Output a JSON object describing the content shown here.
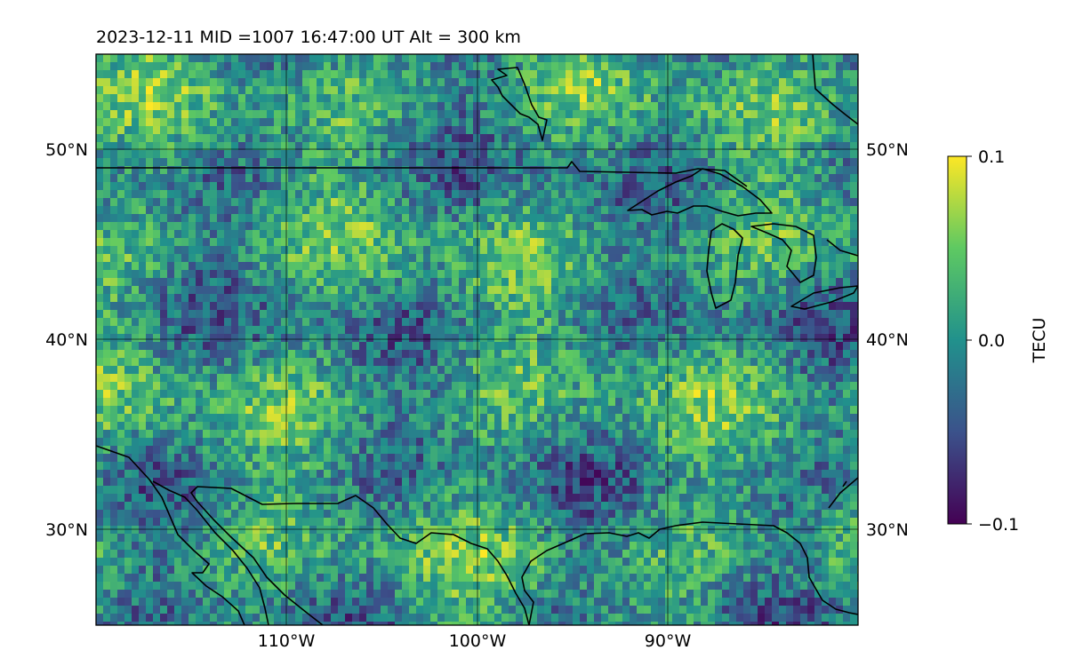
{
  "figure": {
    "title": "2023-12-11  MID =1007    16:47:00  UT  Alt = 300 km"
  },
  "map": {
    "lon_range": [
      -120,
      -80
    ],
    "lat_range": [
      25,
      55
    ],
    "lon_ticks": [
      {
        "value": -110,
        "label": "110°W"
      },
      {
        "value": -100,
        "label": "100°W"
      },
      {
        "value": -90,
        "label": "90°W"
      }
    ],
    "lat_ticks": [
      {
        "value": 50,
        "label": "50°N"
      },
      {
        "value": 40,
        "label": "40°N"
      },
      {
        "value": 30,
        "label": "30°N"
      }
    ],
    "gridlines": true,
    "coastlines": true,
    "colormap": "viridis",
    "colormap_stops": [
      "#440154",
      "#3b528b",
      "#21918c",
      "#5ec962",
      "#fde725"
    ]
  },
  "colorbar": {
    "label": "TECU",
    "min": -0.1,
    "max": 0.1,
    "ticks": [
      {
        "value": 0.1,
        "label": "0.1"
      },
      {
        "value": 0.0,
        "label": "0.0"
      },
      {
        "value": -0.1,
        "label": "−0.1"
      }
    ]
  }
}
